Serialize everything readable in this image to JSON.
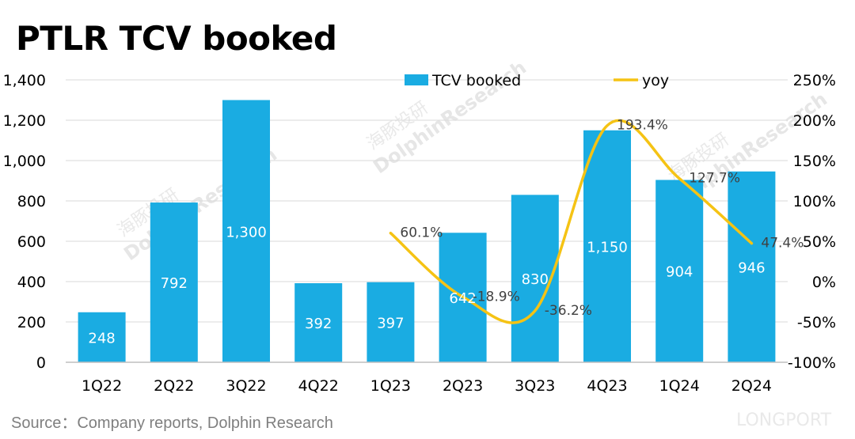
{
  "title": "PTLR TCV booked",
  "source": "Source：Company reports, Dolphin Research",
  "watermarks": [
    "海豚投研",
    "DolphinResearch",
    "LONGPORT"
  ],
  "colors": {
    "bar": "#1aace2",
    "line": "#f5c314",
    "grid": "#d9d9d9",
    "axis": "#bfbfbf"
  },
  "chart_data": {
    "type": "bar",
    "categories": [
      "1Q22",
      "2Q22",
      "3Q22",
      "4Q22",
      "1Q23",
      "2Q23",
      "3Q23",
      "4Q23",
      "1Q24",
      "2Q24"
    ],
    "series": [
      {
        "name": "TCV booked",
        "type": "bar",
        "axis": "left",
        "values": [
          248,
          792,
          1300,
          392,
          397,
          642,
          830,
          1150,
          904,
          946
        ],
        "labels": [
          "248",
          "792",
          "1,300",
          "392",
          "397",
          "642",
          "830",
          "1,150",
          "904",
          "946"
        ]
      },
      {
        "name": "yoy",
        "type": "line",
        "axis": "right",
        "values": [
          null,
          null,
          null,
          null,
          60.1,
          -18.9,
          -36.2,
          193.4,
          127.7,
          47.4
        ],
        "labels": [
          "",
          "",
          "",
          "",
          "60.1%",
          "-18.9%",
          "-36.2%",
          "193.4%",
          "127.7%",
          "47.4%"
        ]
      }
    ],
    "y_left": {
      "min": 0,
      "max": 1400,
      "step": 200,
      "tick_labels": [
        "0",
        "200",
        "400",
        "600",
        "800",
        "1,000",
        "1,200",
        "1,400"
      ]
    },
    "y_right": {
      "min": -100,
      "max": 250,
      "step": 50,
      "tick_labels": [
        "-100%",
        "-50%",
        "0%",
        "50%",
        "100%",
        "150%",
        "200%",
        "250%"
      ]
    },
    "grid": true,
    "legend": "top"
  }
}
